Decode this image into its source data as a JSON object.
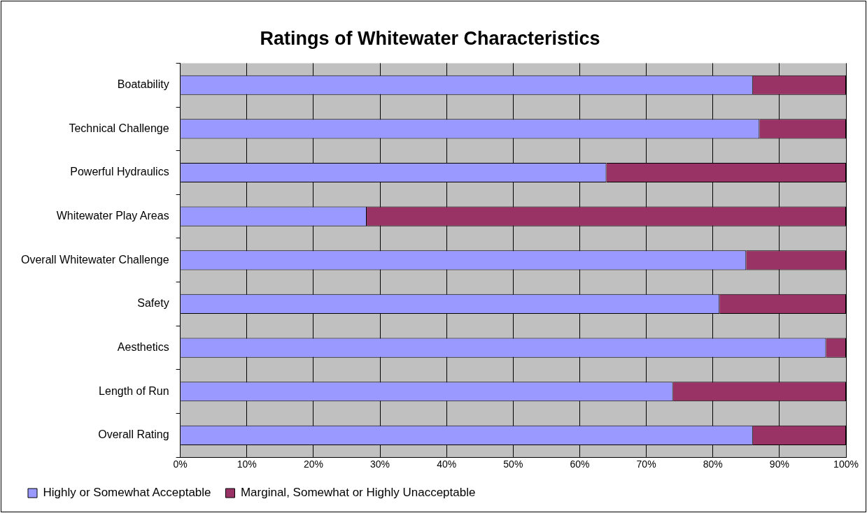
{
  "chart_data": {
    "type": "bar",
    "title": "Ratings of Whitewater Characteristics",
    "orientation": "horizontal",
    "stacked": true,
    "categories": [
      "Boatability",
      "Technical Challenge",
      "Powerful Hydraulics",
      "Whitewater Play Areas",
      "Overall Whitewater Challenge",
      "Safety",
      "Aesthetics",
      "Length of Run",
      "Overall Rating"
    ],
    "series": [
      {
        "name": "Highly or Somewhat Acceptable",
        "color": "#9999ff",
        "values": [
          86,
          87,
          64,
          28,
          85,
          81,
          97,
          74,
          86
        ]
      },
      {
        "name": "Marginal, Somewhat or Highly Unacceptable",
        "color": "#993366",
        "values": [
          14,
          13,
          36,
          72,
          15,
          19,
          3,
          26,
          14
        ]
      }
    ],
    "xlim": [
      0,
      100
    ],
    "xticks": [
      {
        "value": 0,
        "label": "0%"
      },
      {
        "value": 10,
        "label": "10%"
      },
      {
        "value": 20,
        "label": "20%"
      },
      {
        "value": 30,
        "label": "30%"
      },
      {
        "value": 40,
        "label": "40%"
      },
      {
        "value": 50,
        "label": "50%"
      },
      {
        "value": 60,
        "label": "60%"
      },
      {
        "value": 70,
        "label": "70%"
      },
      {
        "value": 80,
        "label": "80%"
      },
      {
        "value": 90,
        "label": "90%"
      },
      {
        "value": 100,
        "label": "100%"
      }
    ],
    "grid": "x",
    "legend": "bottom left"
  }
}
